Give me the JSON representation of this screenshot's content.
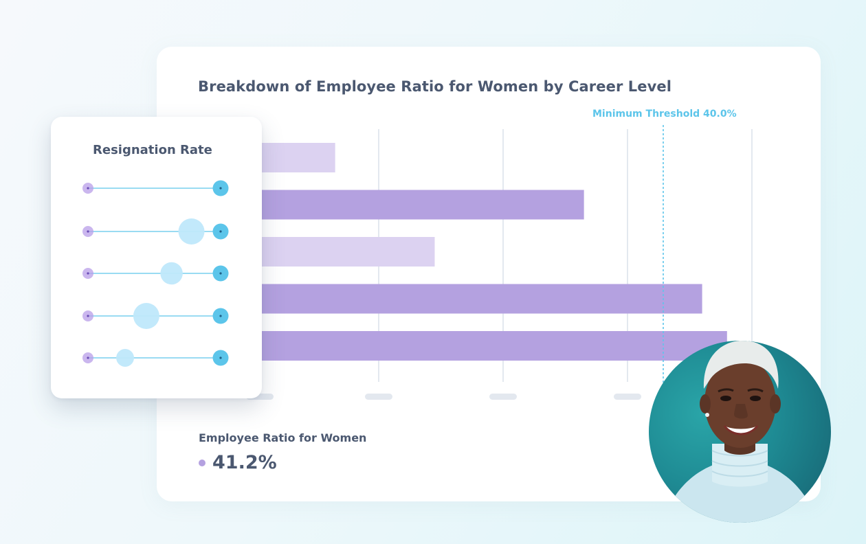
{
  "colors": {
    "bar_dark": "#b4a1e0",
    "bar_light": "#dcd2f1",
    "threshold": "#5cc5ea",
    "grid": "#e3e8ef",
    "resign_left_dot": "#b89ee8",
    "resign_right_dot": "#5cc5ea",
    "resign_mid_bubble": "#bfe8fb"
  },
  "chart_data": [
    {
      "type": "bar",
      "orientation": "horizontal",
      "title": "Breakdown of Employee Ratio for Women by Career Level",
      "values": [
        6.5,
        26.5,
        14.5,
        36.0,
        38.0
      ],
      "value_colors": [
        "light",
        "dark",
        "light",
        "dark",
        "dark"
      ],
      "xlim": [
        0,
        40
      ],
      "grid": true,
      "threshold": {
        "label": "Minimum Threshold 40.0%",
        "value": 40.0
      }
    },
    {
      "type": "scatter",
      "title": "Resignation Rate",
      "rows": [
        {
          "start": 0,
          "end": 1,
          "bubble": null,
          "bubble_size": 0
        },
        {
          "start": 0,
          "end": 1,
          "bubble": 0.78,
          "bubble_size": 1.0
        },
        {
          "start": 0,
          "end": 1,
          "bubble": 0.63,
          "bubble_size": 0.75
        },
        {
          "start": 0,
          "end": 1,
          "bubble": 0.44,
          "bubble_size": 1.0
        },
        {
          "start": 0,
          "end": 1,
          "bubble": 0.28,
          "bubble_size": 0.45
        }
      ]
    }
  ],
  "summary": {
    "label": "Employee Ratio for Women",
    "value": "41.2%"
  },
  "portrait": {
    "icon": "person-portrait"
  }
}
